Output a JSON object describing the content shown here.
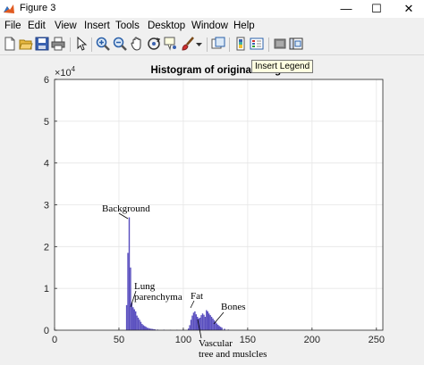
{
  "window": {
    "title": "Figure 3",
    "minimize_glyph": "—",
    "maximize_glyph": "☐",
    "close_glyph": "✕"
  },
  "menu": {
    "items": [
      "File",
      "Edit",
      "View",
      "Insert",
      "Tools",
      "Desktop",
      "Window",
      "Help"
    ]
  },
  "toolbar": {
    "icons": [
      "new-figure-icon",
      "open-file-icon",
      "save-icon",
      "print-icon",
      "edit-plot-arrow-icon",
      "zoom-in-icon",
      "zoom-out-icon",
      "pan-hand-icon",
      "rotate-3d-icon",
      "data-cursor-icon",
      "brush-icon",
      "brush-dropdown-icon",
      "link-plot-icon",
      "insert-colorbar-icon",
      "insert-legend-icon",
      "hide-plot-tools-icon",
      "show-plot-tools-icon"
    ]
  },
  "tooltip": {
    "text": "Insert Legend"
  },
  "chart_data": {
    "type": "bar",
    "title": "Histogram of original image",
    "xlabel": "",
    "ylabel": "",
    "xlim": [
      0,
      255
    ],
    "ylim": [
      0,
      60000
    ],
    "y_exponent_label": "×10",
    "y_exponent_power": "4",
    "x_ticks": [
      "0",
      "50",
      "100",
      "150",
      "200",
      "250"
    ],
    "y_ticks": [
      "0",
      "1",
      "2",
      "3",
      "4",
      "5",
      "6"
    ],
    "grid": true,
    "bar_color": "#5a4fbf",
    "x": [
      56,
      57,
      58,
      59,
      60,
      61,
      62,
      63,
      64,
      65,
      66,
      67,
      68,
      69,
      70,
      71,
      72,
      73,
      74,
      75,
      76,
      77,
      78,
      80,
      85,
      90,
      95,
      100,
      104,
      105,
      106,
      107,
      108,
      109,
      110,
      111,
      112,
      113,
      114,
      115,
      116,
      117,
      118,
      119,
      120,
      121,
      122,
      123,
      124,
      125,
      126,
      127,
      128,
      129,
      130,
      132,
      135
    ],
    "values": [
      6000,
      18500,
      27000,
      15000,
      6500,
      5500,
      5000,
      4500,
      3500,
      3000,
      2500,
      2000,
      1500,
      1200,
      1000,
      800,
      600,
      500,
      400,
      350,
      300,
      250,
      200,
      150,
      120,
      100,
      100,
      150,
      400,
      1200,
      2500,
      3500,
      4200,
      4500,
      3800,
      3200,
      2800,
      3000,
      3600,
      4000,
      3700,
      3200,
      4800,
      4500,
      4000,
      3600,
      3200,
      2800,
      2400,
      2000,
      1600,
      1300,
      1000,
      800,
      600,
      350,
      150
    ],
    "annotations": [
      {
        "lines": [
          "Background"
        ]
      },
      {
        "lines": [
          "Lung",
          "parenchyma"
        ]
      },
      {
        "lines": [
          "Fat"
        ]
      },
      {
        "lines": [
          "Bones"
        ]
      },
      {
        "lines": [
          "Vascular",
          "tree and muslcles"
        ]
      }
    ]
  }
}
